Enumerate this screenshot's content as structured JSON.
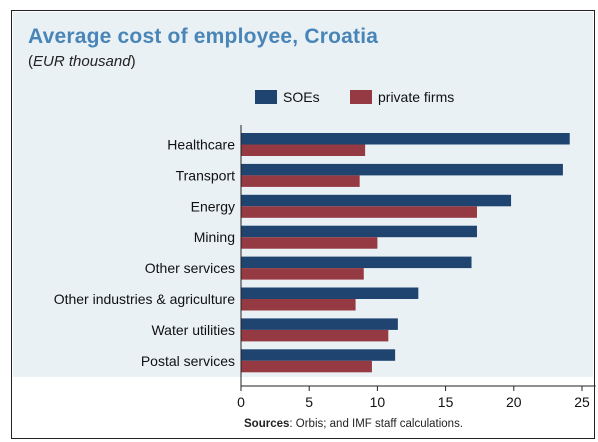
{
  "title": "Average cost of employee, Croatia",
  "subtitle_open": "(",
  "subtitle_unit": "EUR thousand",
  "subtitle_close": ")",
  "source_label": "Sources",
  "source_text": ": Orbis; and IMF staff calculations.",
  "colors": {
    "soe": "#1f4470",
    "private": "#953a42",
    "title": "#4a85b7",
    "panel": "#e9f1f5"
  },
  "chart_data": {
    "type": "bar",
    "orientation": "horizontal",
    "categories": [
      "Healthcare",
      "Transport",
      "Energy",
      "Mining",
      "Other services",
      "Other industries & agriculture",
      "Water utilities",
      "Postal services"
    ],
    "series": [
      {
        "name": "SOEs",
        "values": [
          24.1,
          23.6,
          19.8,
          17.3,
          16.9,
          13.0,
          11.5,
          11.3
        ]
      },
      {
        "name": "private firms",
        "values": [
          9.1,
          8.7,
          17.3,
          10.0,
          9.0,
          8.4,
          10.8,
          9.6
        ]
      }
    ],
    "xticks": [
      0,
      5,
      10,
      15,
      20,
      25
    ],
    "xlim": [
      0,
      26
    ],
    "xlabel": "",
    "ylabel": "",
    "legend": "top-center",
    "grid": false
  }
}
